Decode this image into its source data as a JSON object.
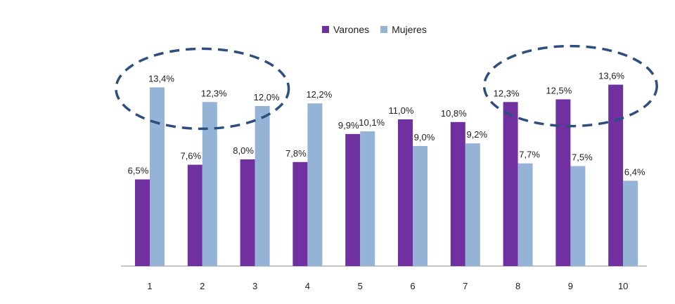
{
  "chart_data": {
    "type": "bar",
    "categories": [
      "1",
      "2",
      "3",
      "4",
      "5",
      "6",
      "7",
      "8",
      "9",
      "10"
    ],
    "series": [
      {
        "name": "Varones",
        "color": "#7030A0",
        "values": [
          6.5,
          7.6,
          8.0,
          7.8,
          9.9,
          11.0,
          10.8,
          12.3,
          12.5,
          13.6
        ],
        "labels": [
          "6,5%",
          "7,6%",
          "8,0%",
          "7,8%",
          "9,9%",
          "11,0%",
          "10,8%",
          "12,3%",
          "12,5%",
          "13,6%"
        ]
      },
      {
        "name": "Mujeres",
        "color": "#95B3D7",
        "values": [
          13.4,
          12.3,
          12.0,
          12.2,
          10.1,
          9.0,
          9.2,
          7.7,
          7.5,
          6.4
        ],
        "labels": [
          "13,4%",
          "12,3%",
          "12,0%",
          "12,2%",
          "10,1%",
          "9,0%",
          "9,2%",
          "7,7%",
          "7,5%",
          "6,4%"
        ]
      }
    ],
    "ylim": [
      0,
      15
    ],
    "grid": false,
    "legend_position": "top-center",
    "annotations": [
      {
        "shape": "dashed-ellipse",
        "color": "#2E4E7E",
        "around_categories": [
          "1",
          "2",
          "3"
        ]
      },
      {
        "shape": "dashed-ellipse",
        "color": "#2E4E7E",
        "around_categories": [
          "8",
          "9",
          "10"
        ]
      }
    ]
  }
}
